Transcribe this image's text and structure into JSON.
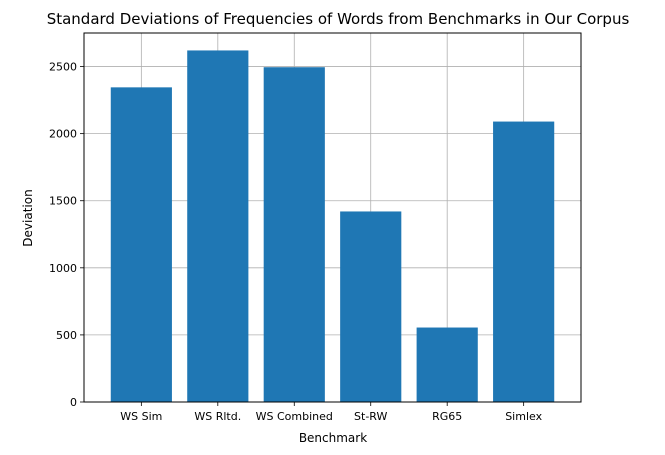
{
  "chart_data": {
    "type": "bar",
    "title": "Standard Deviations of Frequencies of Words from Benchmarks in Our Corpus",
    "xlabel": "Benchmark",
    "ylabel": "Deviation",
    "categories": [
      "WS Sim",
      "WS Rltd.",
      "WS Combined",
      "St-RW",
      "RG65",
      "Simlex"
    ],
    "values": [
      2345,
      2620,
      2495,
      1420,
      555,
      2090
    ],
    "ylim": [
      0,
      2750
    ],
    "yticks": [
      0,
      500,
      1000,
      1500,
      2000,
      2500
    ],
    "grid": true,
    "legend": "none",
    "bar_color": "#1f77b4",
    "grid_color": "#b0b0b0"
  }
}
